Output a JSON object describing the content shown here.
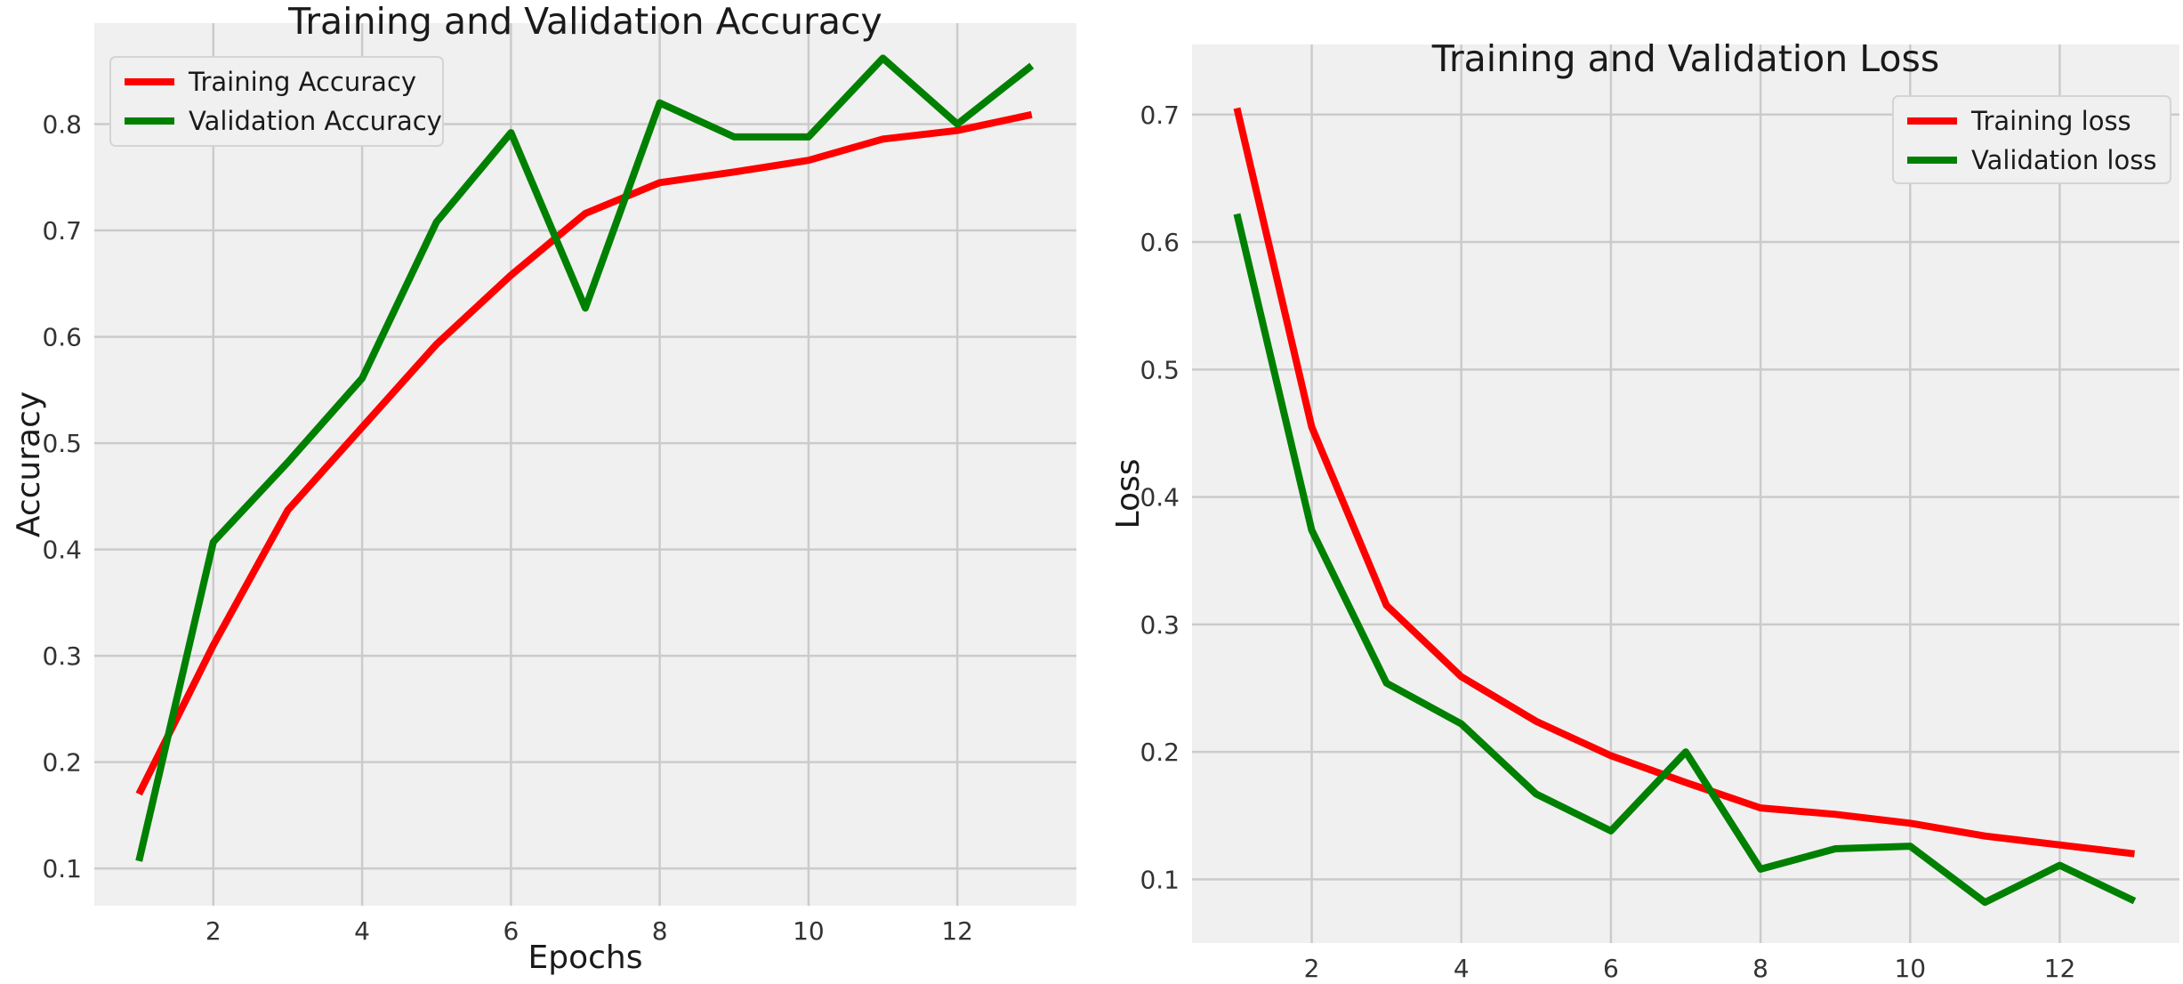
{
  "chart_data": [
    {
      "type": "line",
      "title": "Training and Validation Accuracy",
      "xlabel": "Epochs",
      "ylabel": "Accuracy",
      "xlim": [
        0.4,
        13.6
      ],
      "ylim": [
        0.065,
        0.895
      ],
      "x_ticks": [
        2,
        4,
        6,
        8,
        10,
        12
      ],
      "y_ticks": [
        0.1,
        0.2,
        0.3,
        0.4,
        0.5,
        0.6,
        0.7,
        0.8
      ],
      "grid": true,
      "legend_position": "top-left",
      "x": [
        1,
        2,
        3,
        4,
        5,
        6,
        7,
        8,
        9,
        10,
        11,
        12,
        13
      ],
      "series": [
        {
          "name": "Training Accuracy",
          "color": "#ff0000",
          "values": [
            0.17,
            0.31,
            0.437,
            0.515,
            0.593,
            0.658,
            0.716,
            0.745,
            0.755,
            0.766,
            0.786,
            0.794,
            0.809
          ]
        },
        {
          "name": "Validation Accuracy",
          "color": "#008000",
          "values": [
            0.107,
            0.407,
            0.482,
            0.561,
            0.708,
            0.792,
            0.627,
            0.82,
            0.788,
            0.788,
            0.862,
            0.8,
            0.855
          ]
        }
      ]
    },
    {
      "type": "line",
      "title": "Training and Validation Loss",
      "xlabel": "",
      "ylabel": "Loss",
      "xlim": [
        0.4,
        13.6
      ],
      "ylim": [
        0.05,
        0.755
      ],
      "x_ticks": [
        2,
        4,
        6,
        8,
        10,
        12
      ],
      "y_ticks": [
        0.1,
        0.2,
        0.3,
        0.4,
        0.5,
        0.6,
        0.7
      ],
      "grid": true,
      "legend_position": "top-right",
      "x": [
        1,
        2,
        3,
        4,
        5,
        6,
        7,
        8,
        9,
        10,
        11,
        12,
        13
      ],
      "series": [
        {
          "name": "Training loss",
          "color": "#ff0000",
          "values": [
            0.705,
            0.455,
            0.315,
            0.259,
            0.224,
            0.197,
            0.176,
            0.156,
            0.151,
            0.144,
            0.134,
            0.127,
            0.12
          ]
        },
        {
          "name": "Validation loss",
          "color": "#008000",
          "values": [
            0.622,
            0.374,
            0.254,
            0.222,
            0.167,
            0.138,
            0.2,
            0.108,
            0.124,
            0.126,
            0.082,
            0.111,
            0.083
          ]
        }
      ]
    }
  ]
}
